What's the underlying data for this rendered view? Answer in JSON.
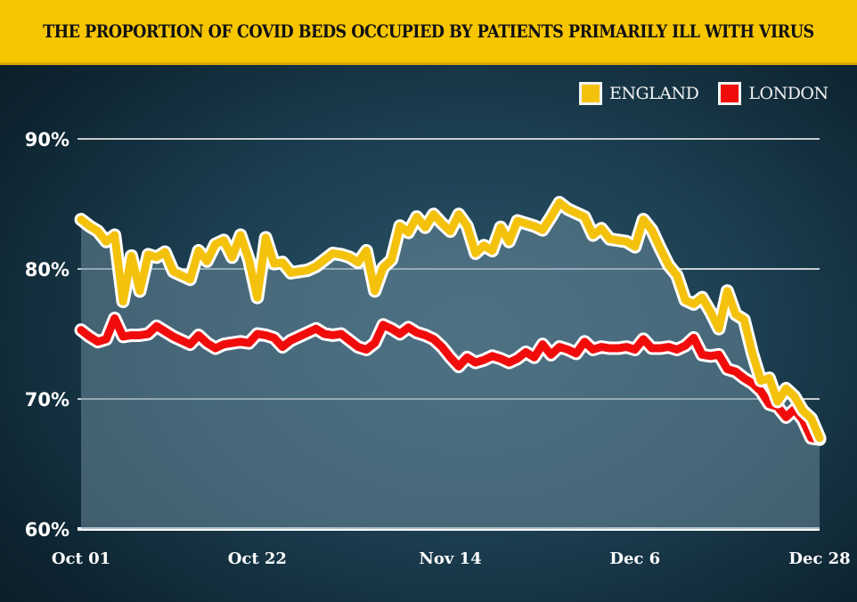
{
  "header": {
    "title": "THE PROPORTION OF COVID BEDS OCCUPIED BY PATIENTS PRIMARILY ILL WITH VIRUS"
  },
  "colors": {
    "title_bar": "#f7c600",
    "england": "#f4c20d",
    "london": "#f10c0c",
    "outline": "#ffffff",
    "area_fill": "#6a8b9a"
  },
  "legend": [
    {
      "label": "ENGLAND",
      "color": "#f4c20d"
    },
    {
      "label": "LONDON",
      "color": "#f10c0c"
    }
  ],
  "chart_data": {
    "type": "line",
    "title": "THE PROPORTION OF COVID BEDS OCCUPIED BY PATIENTS PRIMARILY ILL WITH VIRUS",
    "xlabel": "",
    "ylabel": "",
    "ylim": [
      60,
      90
    ],
    "yticks": [
      60,
      70,
      80,
      90
    ],
    "ytick_labels": [
      "60%",
      "70%",
      "80%",
      "90%"
    ],
    "x_start": "Oct 01",
    "x_end": "Dec 28",
    "x_count": 89,
    "xtick_positions": [
      0,
      21,
      44,
      66,
      88
    ],
    "xtick_labels": [
      "Oct 01",
      "Oct 22",
      "Nov 14",
      "Dec 6",
      "Dec 28"
    ],
    "grid": true,
    "legend_position": "top-right",
    "series": [
      {
        "name": "ENGLAND",
        "values": [
          83.8,
          83.3,
          82.9,
          82.1,
          82.6,
          77.5,
          81.0,
          78.3,
          81.1,
          80.9,
          81.3,
          79.8,
          79.5,
          79.2,
          81.4,
          80.6,
          81.9,
          82.2,
          80.9,
          82.6,
          80.7,
          77.8,
          82.4,
          80.4,
          80.5,
          79.7,
          79.8,
          79.9,
          80.2,
          80.7,
          81.2,
          81.1,
          80.9,
          80.5,
          81.4,
          78.3,
          80.1,
          80.7,
          83.3,
          82.8,
          84.0,
          83.2,
          84.2,
          83.5,
          82.9,
          84.2,
          83.3,
          81.2,
          81.8,
          81.4,
          83.2,
          82.1,
          83.7,
          83.5,
          83.3,
          83.0,
          84.0,
          85.1,
          84.6,
          84.3,
          84.0,
          82.6,
          83.1,
          82.3,
          82.2,
          82.1,
          81.7,
          83.8,
          83.0,
          81.6,
          80.3,
          79.5,
          77.6,
          77.3,
          77.8,
          76.7,
          75.4,
          78.3,
          76.5,
          76.1,
          73.5,
          71.4,
          71.6,
          69.8,
          70.8,
          70.2,
          69.1,
          68.5,
          67.0
        ]
      },
      {
        "name": "LONDON",
        "values": [
          75.3,
          74.8,
          74.4,
          74.6,
          76.2,
          74.8,
          74.9,
          74.9,
          75.0,
          75.6,
          75.2,
          74.8,
          74.5,
          74.2,
          74.9,
          74.3,
          73.9,
          74.2,
          74.3,
          74.4,
          74.3,
          75.0,
          74.9,
          74.7,
          74.0,
          74.5,
          74.8,
          75.1,
          75.4,
          75.0,
          74.9,
          75.0,
          74.5,
          74.0,
          73.8,
          74.3,
          75.7,
          75.4,
          75.0,
          75.5,
          75.1,
          74.9,
          74.6,
          74.0,
          73.2,
          72.5,
          73.2,
          72.8,
          73.0,
          73.3,
          73.1,
          72.8,
          73.1,
          73.6,
          73.2,
          74.2,
          73.4,
          74.0,
          73.8,
          73.5,
          74.4,
          73.8,
          74.0,
          73.9,
          73.9,
          74.0,
          73.8,
          74.6,
          73.9,
          73.9,
          74.0,
          73.8,
          74.1,
          74.7,
          73.4,
          73.3,
          73.4,
          72.3,
          72.1,
          71.6,
          71.2,
          70.6,
          69.6,
          69.4,
          68.6,
          69.2,
          68.4,
          67.0,
          66.9
        ]
      }
    ]
  }
}
